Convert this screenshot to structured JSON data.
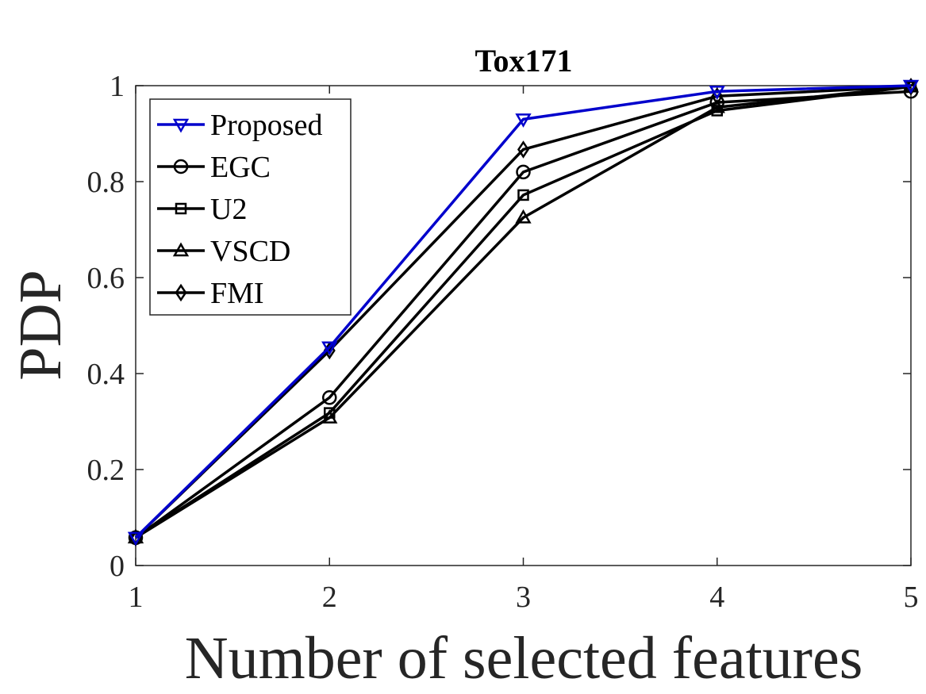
{
  "chart_data": {
    "type": "line",
    "title": "Tox171",
    "xlabel": "Number of selected features",
    "ylabel": "PDP",
    "x": [
      1,
      2,
      3,
      4,
      5
    ],
    "xlim": [
      1,
      5
    ],
    "ylim": [
      0,
      1
    ],
    "xticks": [
      "1",
      "2",
      "3",
      "4",
      "5"
    ],
    "yticks": [
      "0",
      "0.2",
      "0.4",
      "0.6",
      "0.8",
      "1"
    ],
    "grid": false,
    "legend_position": "top-left",
    "series": [
      {
        "name": "Proposed",
        "values": [
          0.058,
          0.455,
          0.93,
          0.988,
          1.0
        ],
        "color": "#0000cc",
        "marker": "triangle-down"
      },
      {
        "name": "EGC",
        "values": [
          0.058,
          0.35,
          0.82,
          0.965,
          0.988
        ],
        "color": "#000000",
        "marker": "circle"
      },
      {
        "name": "U2",
        "values": [
          0.058,
          0.318,
          0.772,
          0.948,
          0.998
        ],
        "color": "#000000",
        "marker": "square"
      },
      {
        "name": "VSCD",
        "values": [
          0.058,
          0.308,
          0.725,
          0.955,
          0.998
        ],
        "color": "#000000",
        "marker": "triangle-up"
      },
      {
        "name": "FMI",
        "values": [
          0.058,
          0.448,
          0.867,
          0.978,
          0.998
        ],
        "color": "#000000",
        "marker": "diamond"
      }
    ]
  }
}
